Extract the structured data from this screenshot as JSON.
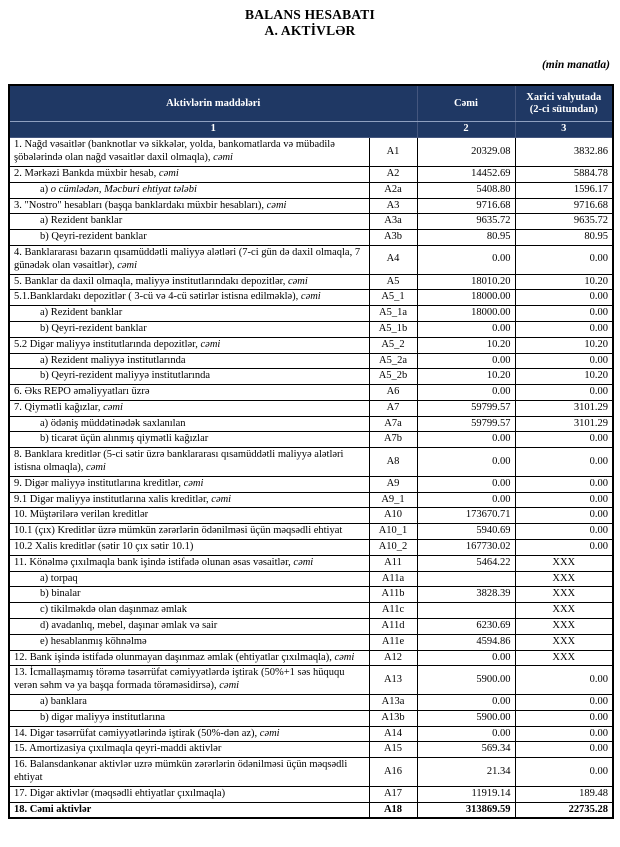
{
  "page": {
    "title_line1": "BALANS HESABATI",
    "title_line2": "A. AKTİVLƏR",
    "unit_note": "(min manatla)"
  },
  "colors": {
    "header_bg": "#1f3864",
    "header_text": "#ffffff",
    "border": "#000000"
  },
  "table": {
    "header": {
      "col_items": "Aktivlərin  maddələri",
      "col_total": "Cəmi",
      "col_foreign": "Xarici valyutada (2-ci sütundan)",
      "num_items": "1",
      "num_total": "2",
      "num_foreign": "3"
    },
    "rows": [
      {
        "label": "1. Nağd vəsaitlər (banknotlar və sikkələr, yolda, bankomatlarda və mübadilə şöbələrində olan nağd vəsaitlər daxil olmaqla), ",
        "italic": "cəmi",
        "code": "A1",
        "total": "20329.08",
        "foreign": "3832.86",
        "indent": false,
        "bold": false
      },
      {
        "label": "2. Mərkəzi Bankda müxbir hesab, ",
        "italic": "cəmi",
        "code": "A2",
        "total": "14452.69",
        "foreign": "5884.78",
        "indent": false,
        "bold": false
      },
      {
        "label": "a) ",
        "italic": "o cümlədən, Məcburi ehtiyat tələbi",
        "code": "A2a",
        "total": "5408.80",
        "foreign": "1596.17",
        "indent": true,
        "bold": false
      },
      {
        "label": "3. \"Nostro\" hesabları (başqa banklardakı müxbir hesabları), ",
        "italic": "cəmi",
        "code": "A3",
        "total": "9716.68",
        "foreign": "9716.68",
        "indent": false,
        "bold": false
      },
      {
        "label": "a) Rezident banklar",
        "italic": "",
        "code": "A3a",
        "total": "9635.72",
        "foreign": "9635.72",
        "indent": true,
        "bold": false
      },
      {
        "label": "b) Qeyri-rezident banklar",
        "italic": "",
        "code": "A3b",
        "total": "80.95",
        "foreign": "80.95",
        "indent": true,
        "bold": false
      },
      {
        "label": "4. Banklararası bazarın qısamüddətli maliyyə alətləri (7-ci gün də daxil olmaqla, 7 günədək olan vəsaitlər), ",
        "italic": "cəmi",
        "code": "A4",
        "total": "0.00",
        "foreign": "0.00",
        "indent": false,
        "bold": false
      },
      {
        "label": "5. Banklar da daxil olmaqla, maliyyə institutlarındakı depozitlər, ",
        "italic": "cəmi",
        "code": "A5",
        "total": "18010.20",
        "foreign": "10.20",
        "indent": false,
        "bold": false
      },
      {
        "label": "5.1.Banklardakı depozitlər ( 3-cü və 4-cü sətirlər istisna edilməklə), ",
        "italic": "cəmi",
        "code": "A5_1",
        "total": "18000.00",
        "foreign": "0.00",
        "indent": false,
        "bold": false
      },
      {
        "label": "a) Rezident banklar",
        "italic": "",
        "code": "A5_1a",
        "total": "18000.00",
        "foreign": "0.00",
        "indent": true,
        "bold": false
      },
      {
        "label": "b) Qeyri-rezident banklar",
        "italic": "",
        "code": "A5_1b",
        "total": "0.00",
        "foreign": "0.00",
        "indent": true,
        "bold": false
      },
      {
        "label": "5.2 Digər maliyyə institutlarında depozitlər, ",
        "italic": "cəmi",
        "code": "A5_2",
        "total": "10.20",
        "foreign": "10.20",
        "indent": false,
        "bold": false
      },
      {
        "label": "a) Rezident maliyyə institutlarında",
        "italic": "",
        "code": "A5_2a",
        "total": "0.00",
        "foreign": "0.00",
        "indent": true,
        "bold": false
      },
      {
        "label": "b) Qeyri-rezident maliyyə institutlarında",
        "italic": "",
        "code": "A5_2b",
        "total": "10.20",
        "foreign": "10.20",
        "indent": true,
        "bold": false
      },
      {
        "label": "6. Əks REPO əməliyyatları üzrə",
        "italic": "",
        "code": "A6",
        "total": "0.00",
        "foreign": "0.00",
        "indent": false,
        "bold": false
      },
      {
        "label": "7. Qiymətli kağızlar, ",
        "italic": "cəmi",
        "code": "A7",
        "total": "59799.57",
        "foreign": "3101.29",
        "indent": false,
        "bold": false
      },
      {
        "label": "a) ödəniş müddətinədək saxlanılan",
        "italic": "",
        "code": "A7a",
        "total": "59799.57",
        "foreign": "3101.29",
        "indent": true,
        "bold": false
      },
      {
        "label": "b) ticarət üçün alınmış qiymətli kağızlar",
        "italic": "",
        "code": "A7b",
        "total": "0.00",
        "foreign": "0.00",
        "indent": true,
        "bold": false
      },
      {
        "label": "8. Banklara kreditlər (5-ci sətir üzrə banklararası qısamüddətli maliyyə alətləri istisna olmaqla), ",
        "italic": "cəmi",
        "code": "A8",
        "total": "0.00",
        "foreign": "0.00",
        "indent": false,
        "bold": false
      },
      {
        "label": "9. Digər maliyyə institutlarına kreditlər, ",
        "italic": "cəmi",
        "code": "A9",
        "total": "0.00",
        "foreign": "0.00",
        "indent": false,
        "bold": false
      },
      {
        "label": "9.1 Digər maliyyə institutlarına xalis kreditlər, ",
        "italic": "cəmi",
        "code": "A9_1",
        "total": "0.00",
        "foreign": "0.00",
        "indent": false,
        "bold": false
      },
      {
        "label": "10. Müştərilərə verilən kreditlər",
        "italic": "",
        "code": "A10",
        "total": "173670.71",
        "foreign": "0.00",
        "indent": false,
        "bold": false
      },
      {
        "label": "10.1 (çıx) Kreditlər üzrə mümkün zərərlərin ödənilməsi üçün məqsədli ehtiyat",
        "italic": "",
        "code": "A10_1",
        "total": "5940.69",
        "foreign": "0.00",
        "indent": false,
        "bold": false
      },
      {
        "label": "10.2 Xalis kreditlər (sətir 10 çıx sətir 10.1)",
        "italic": "",
        "code": "A10_2",
        "total": "167730.02",
        "foreign": "0.00",
        "indent": false,
        "bold": false
      },
      {
        "label": "11. Könəlmə çıxılmaqla bank işində istifadə olunan əsas vəsaitlər, ",
        "italic": "cəmi",
        "code": "A11",
        "total": "5464.22",
        "foreign": "XXX",
        "indent": false,
        "bold": false
      },
      {
        "label": "a) torpaq",
        "italic": "",
        "code": "A11a",
        "total": "",
        "foreign": "XXX",
        "indent": true,
        "bold": false
      },
      {
        "label": "b) binalar",
        "italic": "",
        "code": "A11b",
        "total": "3828.39",
        "foreign": "XXX",
        "indent": true,
        "bold": false
      },
      {
        "label": "c) tikilməkdə olan daşınmaz əmlak",
        "italic": "",
        "code": "A11c",
        "total": "",
        "foreign": "XXX",
        "indent": true,
        "bold": false
      },
      {
        "label": "d) avadanlıq, mebel, daşınar əmlak və sair",
        "italic": "",
        "code": "A11d",
        "total": "6230.69",
        "foreign": "XXX",
        "indent": true,
        "bold": false
      },
      {
        "label": "e) hesablanmış köhnəlmə",
        "italic": "",
        "code": "A11e",
        "total": "4594.86",
        "foreign": "XXX",
        "indent": true,
        "bold": false
      },
      {
        "label": "12. Bank işində istifadə olunmayan daşınmaz əmlak (ehtiyatlar çıxılmaqla), ",
        "italic": "cəmi",
        "code": "A12",
        "total": "0.00",
        "foreign": "XXX",
        "indent": false,
        "bold": false
      },
      {
        "label": "13. İcmallaşmamış törəmə təsərrüfat cəmiyyətlərdə iştirak (50%+1 səs hüququ verən səhm və ya başqa formada törəməsidirsə), ",
        "italic": "cəmi",
        "code": "A13",
        "total": "5900.00",
        "foreign": "0.00",
        "indent": false,
        "bold": false
      },
      {
        "label": "a) banklara",
        "italic": "",
        "code": "A13a",
        "total": "0.00",
        "foreign": "0.00",
        "indent": true,
        "bold": false
      },
      {
        "label": "b) digər maliyyə institutlarına",
        "italic": "",
        "code": "A13b",
        "total": "5900.00",
        "foreign": "0.00",
        "indent": true,
        "bold": false
      },
      {
        "label": "14. Digər təsərrüfat cəmiyyətlərində iştirak (50%-dən az), ",
        "italic": "cəmi",
        "code": "A14",
        "total": "0.00",
        "foreign": "0.00",
        "indent": false,
        "bold": false
      },
      {
        "label": "15. Amortizasiya çıxılmaqla qeyri-maddi aktivlər",
        "italic": "",
        "code": "A15",
        "total": "569.34",
        "foreign": "0.00",
        "indent": false,
        "bold": false
      },
      {
        "label": "16. Balansdankənar aktivlər uzrə mümkün zərərlərin ödənilməsi üçün məqsədli ehtiyat",
        "italic": "",
        "code": "A16",
        "total": "21.34",
        "foreign": "0.00",
        "indent": false,
        "bold": false
      },
      {
        "label": "17. Digər aktivlər (məqsədli ehtiyatlar çıxılmaqla)",
        "italic": "",
        "code": "A17",
        "total": "11919.14",
        "foreign": "189.48",
        "indent": false,
        "bold": false
      },
      {
        "label": "18. Cəmi aktivlər",
        "italic": "",
        "code": "A18",
        "total": "313869.59",
        "foreign": "22735.28",
        "indent": false,
        "bold": true
      }
    ]
  }
}
